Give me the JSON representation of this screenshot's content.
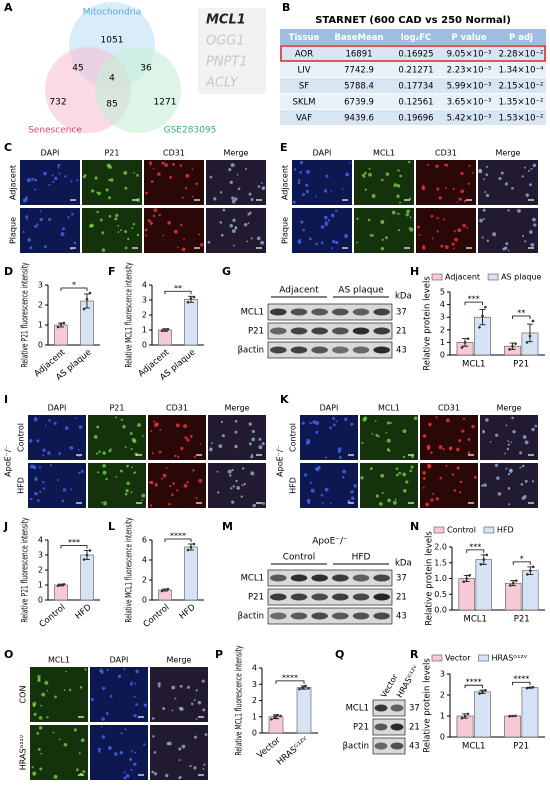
{
  "panel_letters": [
    "A",
    "B",
    "C",
    "D",
    "E",
    "F",
    "G",
    "H",
    "I",
    "J",
    "K",
    "L",
    "M",
    "N",
    "O",
    "P",
    "Q",
    "R"
  ],
  "venn": {
    "sets": [
      "Mitochondria",
      "Senescence",
      "GSE283095"
    ],
    "regions": [
      1051,
      45,
      36,
      4,
      732,
      85,
      1271
    ],
    "genes": [
      "MCL1",
      "OGG1",
      "PNPT1",
      "ACLY"
    ]
  },
  "table": {
    "title": "STARNET (600 CAD vs 250 Normal)",
    "header": [
      "Tissue",
      "BaseMean",
      "log₂FC",
      "P value",
      "P adj"
    ],
    "rows": [
      [
        "AOR",
        16891,
        0.16925,
        "9.05×10⁻³",
        "2.28×10⁻²"
      ],
      [
        "LIV",
        7742.9,
        0.21271,
        "2.23×10⁻⁵",
        "1.34×10⁻⁴"
      ],
      [
        "SF",
        5788.4,
        0.17734,
        "5.99×10⁻³",
        "2.15×10⁻²"
      ],
      [
        "SKLM",
        6739.9,
        0.12561,
        "3.65×10⁻³",
        "1.35×10⁻²"
      ],
      [
        "VAF",
        9439.6,
        0.19696,
        "5.42×10⁻³",
        "1.53×10⁻²"
      ]
    ]
  },
  "image_panels": [
    {
      "columns": [
        "DAPI",
        "P21",
        "CD31",
        "Merge"
      ],
      "rows": [
        "Adjacent",
        "Plaque"
      ]
    },
    {
      "columns": [
        "DAPI",
        "MCL1",
        "CD31",
        "Merge"
      ],
      "rows": [
        "Adjacent",
        "Plaque"
      ]
    },
    {
      "columns": [
        "DAPI",
        "P21",
        "CD31",
        "Merge"
      ],
      "rows": [
        "Control",
        "HFD"
      ],
      "side_label": "ApoE⁻/⁻"
    },
    {
      "columns": [
        "DAPI",
        "MCL1",
        "CD31",
        "Merge"
      ],
      "rows": [
        "Control",
        "HFD"
      ],
      "side_label": "ApoE⁻/⁻"
    },
    {
      "columns": [
        "MCL1",
        "DAPI",
        "Merge"
      ],
      "rows": [
        "CON",
        "HRASᴳ¹²ⱽ"
      ]
    }
  ],
  "blots": [
    {
      "groups": [
        "Adjacent",
        "AS plaque"
      ],
      "unit": "kDa",
      "rows": [
        {
          "protein": "MCL1",
          "kda": 37
        },
        {
          "protein": "P21",
          "kda": 21
        },
        {
          "protein": "βactin",
          "kda": 43
        }
      ]
    },
    {
      "title": "ApoE⁻/⁻",
      "groups": [
        "Control",
        "HFD"
      ],
      "unit": "kDa",
      "rows": [
        {
          "protein": "MCL1",
          "kda": 37
        },
        {
          "protein": "P21",
          "kda": 21
        },
        {
          "protein": "βactin",
          "kda": 43
        }
      ]
    },
    {
      "groups": [
        "Vector",
        "HRASᴳ¹²ⱽ"
      ],
      "rows": [
        {
          "protein": "MCL1",
          "kda": 37
        },
        {
          "protein": "P21",
          "kda": 21
        },
        {
          "protein": "βactin",
          "kda": 43
        }
      ]
    }
  ],
  "chart_data": [
    {
      "type": "bar",
      "ylabel": "Relative P21 fluorescence intensity",
      "categories": [
        "Adjacent",
        "AS plaque"
      ],
      "values": [
        1.0,
        2.2
      ],
      "errors": [
        0.1,
        0.35
      ],
      "points": [
        [
          0.9,
          1.05,
          1.1
        ],
        [
          1.8,
          2.3,
          2.6
        ]
      ],
      "colors": [
        "#f6c9d6",
        "#d5e3f4"
      ],
      "ylim": [
        0,
        3
      ],
      "yticks": [
        0,
        1,
        2,
        3
      ],
      "significance": "*"
    },
    {
      "type": "bar",
      "ylabel": "Relative MCL1 fluorescence intensity",
      "categories": [
        "Adjacent",
        "AS plaque"
      ],
      "values": [
        1.0,
        3.05
      ],
      "errors": [
        0.08,
        0.2
      ],
      "points": [
        [
          0.95,
          1.0,
          1.05
        ],
        [
          2.85,
          3.1,
          3.2
        ]
      ],
      "colors": [
        "#f6c9d6",
        "#d5e3f4"
      ],
      "ylim": [
        0,
        4
      ],
      "yticks": [
        0,
        1,
        2,
        3,
        4
      ],
      "significance": "**"
    },
    {
      "type": "bar",
      "ylabel": "Relative protein levels",
      "categories": [
        "MCL1",
        "P21"
      ],
      "series": [
        {
          "name": "Adjacent",
          "color": "#f6c9d6",
          "values": [
            1.0,
            0.7
          ],
          "errors": [
            0.3,
            0.25
          ],
          "points": [
            [
              0.6,
              1.0,
              1.3
            ],
            [
              0.45,
              0.7,
              0.9
            ]
          ]
        },
        {
          "name": "AS plaque",
          "color": "#d5e3f4",
          "values": [
            3.0,
            1.75
          ],
          "errors": [
            0.6,
            0.7
          ],
          "points": [
            [
              2.2,
              3.1,
              3.8
            ],
            [
              1.0,
              1.5,
              2.7
            ]
          ]
        }
      ],
      "ylim": [
        0,
        5
      ],
      "yticks": [
        0,
        1,
        2,
        3,
        4,
        5
      ],
      "significance": [
        "***",
        "**"
      ],
      "legend": "top"
    },
    {
      "type": "bar",
      "ylabel": "Relative P21 fluorescence intensity",
      "categories": [
        "Control",
        "HFD"
      ],
      "values": [
        1.0,
        3.0
      ],
      "errors": [
        0.06,
        0.3
      ],
      "points": [
        [
          0.95,
          1.0,
          1.05
        ],
        [
          2.7,
          3.0,
          3.3
        ]
      ],
      "colors": [
        "#f6c9d6",
        "#d5e3f4"
      ],
      "ylim": [
        0,
        4
      ],
      "yticks": [
        0,
        1,
        2,
        3,
        4
      ],
      "significance": "***"
    },
    {
      "type": "bar",
      "ylabel": "Relative MCL1 fluorescence intensity",
      "categories": [
        "Control",
        "HFD"
      ],
      "values": [
        1.0,
        5.3
      ],
      "errors": [
        0.1,
        0.3
      ],
      "points": [
        [
          0.9,
          1.0,
          1.1
        ],
        [
          5.0,
          5.3,
          5.6
        ]
      ],
      "colors": [
        "#f6c9d6",
        "#d5e3f4"
      ],
      "ylim": [
        0,
        6
      ],
      "yticks": [
        0,
        2,
        4,
        6
      ],
      "significance": "****"
    },
    {
      "type": "bar",
      "ylabel": "Relative protein levels",
      "categories": [
        "MCL1",
        "P21"
      ],
      "series": [
        {
          "name": "Control",
          "color": "#f6c9d6",
          "values": [
            1.0,
            0.85
          ],
          "errors": [
            0.1,
            0.08
          ],
          "points": [
            [
              0.9,
              1.0,
              1.1
            ],
            [
              0.78,
              0.85,
              0.93
            ]
          ]
        },
        {
          "name": "HFD",
          "color": "#d5e3f4",
          "values": [
            1.6,
            1.25
          ],
          "errors": [
            0.15,
            0.12
          ],
          "points": [
            [
              1.45,
              1.6,
              1.75
            ],
            [
              1.13,
              1.25,
              1.37
            ]
          ]
        }
      ],
      "ylim": [
        0,
        2
      ],
      "yticks": [
        {
          "value": 0,
          "label": "0.0"
        },
        0.5,
        {
          "value": 1,
          "label": "1.0"
        },
        1.5,
        {
          "value": 2,
          "label": "2.0"
        }
      ],
      "significance": [
        "***",
        "*"
      ],
      "legend": "top"
    },
    {
      "type": "bar",
      "ylabel": "Relative MCL1 fluorescence intensity",
      "categories": [
        "Vector",
        "HRASᴳ¹²ⱽ"
      ],
      "values": [
        1.0,
        2.8
      ],
      "errors": [
        0.12,
        0.1
      ],
      "points": [
        [
          0.85,
          1.0,
          1.1,
          1.05
        ],
        [
          2.7,
          2.8,
          2.9,
          2.75
        ]
      ],
      "colors": [
        "#f6c9d6",
        "#d5e3f4"
      ],
      "ylim": [
        0,
        4
      ],
      "yticks": [
        0,
        1,
        2,
        3,
        4
      ],
      "significance": "****"
    },
    {
      "type": "bar",
      "ylabel": "Relative protein levels",
      "categories": [
        "MCL1",
        "P21"
      ],
      "series": [
        {
          "name": "Vector",
          "color": "#f6c9d6",
          "values": [
            1.0,
            1.0
          ],
          "errors": [
            0.1,
            0.01
          ],
          "points": [
            [
              0.9,
              1.0,
              1.1
            ],
            [
              0.99,
              1.0,
              1.01
            ]
          ]
        },
        {
          "name": "HRASᴳ¹²ⱽ",
          "color": "#d5e3f4",
          "values": [
            2.15,
            2.35
          ],
          "errors": [
            0.08,
            0.02
          ],
          "points": [
            [
              2.07,
              2.15,
              2.23
            ],
            [
              2.33,
              2.35,
              2.37
            ]
          ]
        }
      ],
      "ylim": [
        0,
        3
      ],
      "yticks": [
        0,
        1,
        2,
        3
      ],
      "significance": [
        "****",
        "****"
      ],
      "legend": "top"
    }
  ]
}
